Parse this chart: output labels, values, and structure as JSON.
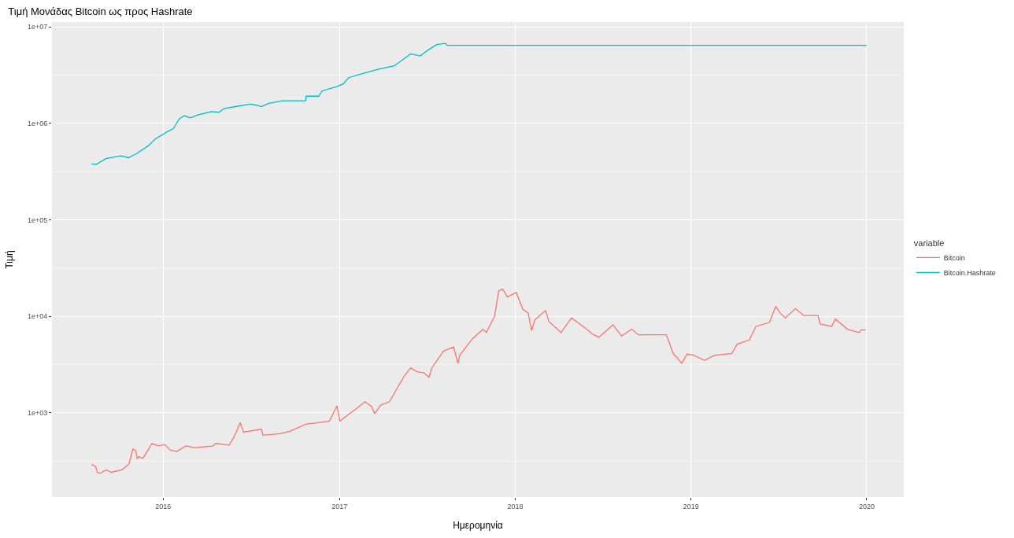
{
  "chart_data": {
    "type": "line",
    "title": "Τιμή Μονάδας Bitcoin ως προς Hashrate",
    "xlabel": "Ημερομηνία",
    "ylabel": "Τιμή",
    "legend_title": "variable",
    "legend": "right",
    "grid": true,
    "log": "y",
    "marker": "none",
    "line_style": "solid",
    "xlim": [
      "2015-05-15",
      "2020-03-18"
    ],
    "xticks": [
      "2016",
      "2017",
      "2018",
      "2019",
      "2020"
    ],
    "ylim": [
      134,
      11200000
    ],
    "yticks": [
      {
        "value": 1000,
        "label": "1e+03"
      },
      {
        "value": 10000,
        "label": "1e+04"
      },
      {
        "value": 100000,
        "label": "1e+05"
      },
      {
        "value": 1000000,
        "label": "1e+06"
      },
      {
        "value": 10000000,
        "label": "1e+07"
      }
    ],
    "series": [
      {
        "name": "Bitcoin",
        "color": "#f8766d",
        "x": [
          "2015-08-05",
          "2015-08-14",
          "2015-08-17",
          "2015-08-22",
          "2015-09-05",
          "2015-09-15",
          "2015-10-08",
          "2015-10-22",
          "2015-10-30",
          "2015-11-05",
          "2015-11-08",
          "2015-11-11",
          "2015-11-20",
          "2015-12-09",
          "2015-12-22",
          "2016-01-04",
          "2016-01-15",
          "2016-01-29",
          "2016-02-17",
          "2016-03-06",
          "2016-04-13",
          "2016-04-19",
          "2016-05-17",
          "2016-05-27",
          "2016-06-09",
          "2016-06-16",
          "2016-07-23",
          "2016-07-26",
          "2016-08-30",
          "2016-09-20",
          "2016-10-23",
          "2016-12-11",
          "2016-12-27",
          "2017-01-02",
          "2017-01-20",
          "2017-02-02",
          "2017-02-23",
          "2017-03-09",
          "2017-03-15",
          "2017-03-28",
          "2017-04-15",
          "2017-05-02",
          "2017-05-16",
          "2017-05-29",
          "2017-06-11",
          "2017-06-25",
          "2017-07-06",
          "2017-07-12",
          "2017-08-05",
          "2017-08-26",
          "2017-09-04",
          "2017-09-08",
          "2017-10-05",
          "2017-10-26",
          "2017-11-02",
          "2017-11-19",
          "2017-11-28",
          "2017-12-06",
          "2017-12-16",
          "2018-01-03",
          "2018-01-17",
          "2018-01-28",
          "2018-02-04",
          "2018-02-11",
          "2018-03-05",
          "2018-03-12",
          "2018-04-06",
          "2018-04-28",
          "2018-05-22",
          "2018-06-13",
          "2018-06-24",
          "2018-07-23",
          "2018-08-10",
          "2018-08-31",
          "2018-09-14",
          "2018-11-11",
          "2018-11-25",
          "2018-12-13",
          "2018-12-24",
          "2019-01-07",
          "2019-01-29",
          "2019-02-19",
          "2019-03-27",
          "2019-04-07",
          "2019-05-02",
          "2019-05-16",
          "2019-06-13",
          "2019-06-26",
          "2019-07-05",
          "2019-07-16",
          "2019-08-06",
          "2019-08-24",
          "2019-09-22",
          "2019-09-26",
          "2019-10-20",
          "2019-10-28",
          "2019-11-22",
          "2019-12-16",
          "2019-12-21",
          "2019-12-30"
        ],
        "values": [
          293,
          277,
          242,
          236,
          256,
          242,
          258,
          296,
          421,
          406,
          333,
          350,
          340,
          482,
          455,
          470,
          413,
          398,
          455,
          436,
          453,
          482,
          463,
          561,
          791,
          631,
          679,
          586,
          608,
          643,
          762,
          822,
          1180,
          822,
          964,
          1076,
          1304,
          1159,
          982,
          1208,
          1304,
          1845,
          2421,
          2923,
          2665,
          2606,
          2333,
          2923,
          4365,
          4808,
          3275,
          3981,
          5916,
          7341,
          6792,
          10000,
          18450,
          19150,
          15850,
          17700,
          11800,
          10830,
          7130,
          9230,
          11480,
          8860,
          6790,
          9640,
          7870,
          6430,
          6080,
          8170,
          6270,
          7350,
          6430,
          6430,
          4130,
          3280,
          4055,
          3955,
          3500,
          3955,
          4130,
          5150,
          5680,
          7870,
          8630,
          12700,
          10830,
          9640,
          12020,
          10190,
          10190,
          8320,
          7870,
          9370,
          7350,
          6790,
          7240,
          7240
        ]
      },
      {
        "name": "Bitcoin.Hashrate",
        "color": "#00bfc4",
        "x": [
          "2015-08-05",
          "2015-08-15",
          "2015-09-04",
          "2015-10-05",
          "2015-10-21",
          "2015-11-08",
          "2015-12-02",
          "2015-12-16",
          "2016-01-12",
          "2016-01-22",
          "2016-02-04",
          "2016-02-14",
          "2016-02-26",
          "2016-03-13",
          "2016-04-10",
          "2016-04-26",
          "2016-05-06",
          "2016-05-30",
          "2016-06-30",
          "2016-07-13",
          "2016-07-23",
          "2016-08-07",
          "2016-09-05",
          "2016-10-23",
          "2016-10-24",
          "2016-11-19",
          "2016-11-26",
          "2016-12-24",
          "2017-01-09",
          "2017-01-20",
          "2017-02-16",
          "2017-03-22",
          "2017-04-25",
          "2017-05-29",
          "2017-06-18",
          "2017-07-03",
          "2017-07-22",
          "2017-08-09",
          "2017-08-13",
          "2020-01-01"
        ],
        "values": [
          380000,
          375000,
          430000,
          460000,
          440000,
          490000,
          590000,
          690000,
          830000,
          880000,
          1120000,
          1200000,
          1140000,
          1220000,
          1320000,
          1300000,
          1420000,
          1490000,
          1580000,
          1540000,
          1490000,
          1610000,
          1710000,
          1710000,
          1910000,
          1910000,
          2170000,
          2380000,
          2560000,
          2970000,
          3250000,
          3630000,
          3940000,
          5250000,
          4990000,
          5690000,
          6550000,
          6740000,
          6430000,
          6430000
        ]
      }
    ]
  }
}
